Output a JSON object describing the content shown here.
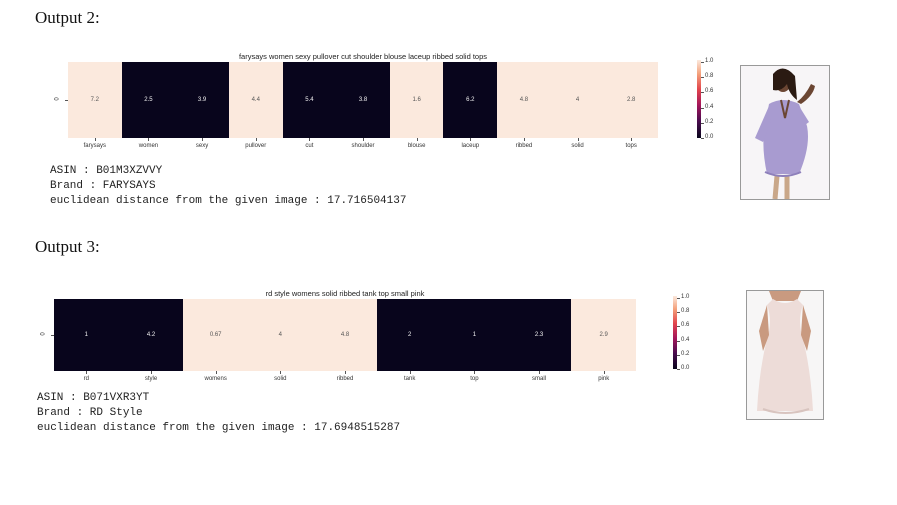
{
  "outputs": [
    {
      "heading": "Output 2:",
      "title": "farysays women sexy pullover cut shoulder blouse laceup ribbed solid tops",
      "row_label": "0",
      "cells": [
        {
          "word": "farysays",
          "value": "7.2",
          "dark": false
        },
        {
          "word": "women",
          "value": "2.5",
          "dark": true
        },
        {
          "word": "sexy",
          "value": "3.9",
          "dark": true
        },
        {
          "word": "pullover",
          "value": "4.4",
          "dark": false
        },
        {
          "word": "cut",
          "value": "5.4",
          "dark": true
        },
        {
          "word": "shoulder",
          "value": "3.8",
          "dark": true
        },
        {
          "word": "blouse",
          "value": "1.6",
          "dark": false
        },
        {
          "word": "laceup",
          "value": "6.2",
          "dark": true
        },
        {
          "word": "ribbed",
          "value": "4.8",
          "dark": false
        },
        {
          "word": "solid",
          "value": "4",
          "dark": false
        },
        {
          "word": "tops",
          "value": "2.8",
          "dark": false
        }
      ],
      "colorbar_ticks": [
        "1.0",
        "0.8",
        "0.6",
        "0.4",
        "0.2",
        "0.0"
      ],
      "asin_line": "ASIN : B01M3XZVVY",
      "brand_line": "Brand : FARYSAYS",
      "distance_line": "euclidean distance from the given image : 17.716504137"
    },
    {
      "heading": "Output 3:",
      "title": "rd style womens solid ribbed tank top small pink",
      "row_label": "0",
      "cells": [
        {
          "word": "rd",
          "value": "1",
          "dark": true
        },
        {
          "word": "style",
          "value": "4.2",
          "dark": true
        },
        {
          "word": "womens",
          "value": "0.67",
          "dark": false
        },
        {
          "word": "solid",
          "value": "4",
          "dark": false
        },
        {
          "word": "ribbed",
          "value": "4.8",
          "dark": false
        },
        {
          "word": "tank",
          "value": "2",
          "dark": true
        },
        {
          "word": "top",
          "value": "1",
          "dark": true
        },
        {
          "word": "small",
          "value": "2.3",
          "dark": true
        },
        {
          "word": "pink",
          "value": "2.9",
          "dark": false
        }
      ],
      "colorbar_ticks": [
        "1.0",
        "0.8",
        "0.6",
        "0.4",
        "0.2",
        "0.0"
      ],
      "asin_line": "ASIN : B071VXR3YT",
      "brand_line": "Brand : RD Style",
      "distance_line": "euclidean distance from the given image : 17.6948515287"
    }
  ],
  "colors": {
    "dark_cell": "#08051c",
    "light_cell": "#fbe9dd"
  }
}
